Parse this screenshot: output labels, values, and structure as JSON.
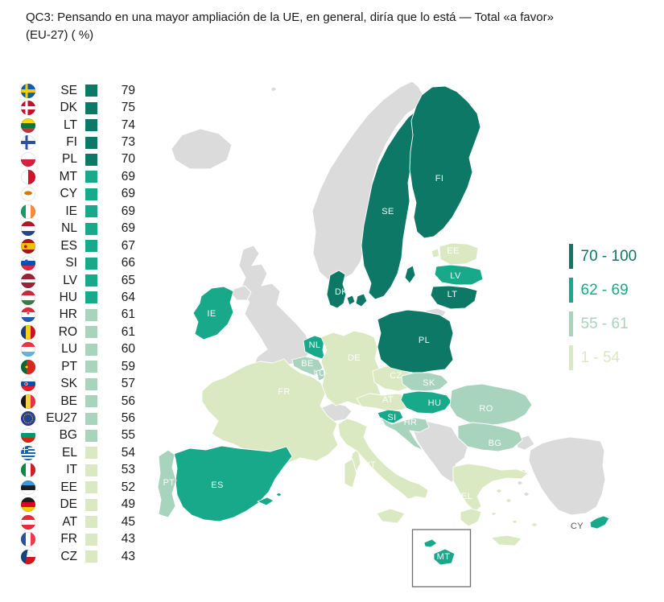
{
  "title": "QC3: Pensando en una mayor ampliación de la UE, en general, diría que lo está — Total «a favor» (EU-27) ( %)",
  "palette": {
    "band1": "#0E7866",
    "band2": "#18A88A",
    "band3": "#A8D4BE",
    "band4": "#DBE9C3",
    "non_eu_grey": "#DBDBDB",
    "sea": "#FFFFFF"
  },
  "legend": {
    "items": [
      {
        "label": "70 - 100",
        "color": "#0E7866"
      },
      {
        "label": "62 - 69",
        "color": "#18A88A"
      },
      {
        "label": "55 - 61",
        "color": "#A8D4BE"
      },
      {
        "label": "1 - 54",
        "color": "#DBE9C3"
      }
    ]
  },
  "ranking": [
    {
      "code": "SE",
      "flag": "flag-se",
      "value": 79
    },
    {
      "code": "DK",
      "flag": "flag-dk",
      "value": 75
    },
    {
      "code": "LT",
      "flag": "flag-lt",
      "value": 74
    },
    {
      "code": "FI",
      "flag": "flag-fi",
      "value": 73
    },
    {
      "code": "PL",
      "flag": "flag-pl",
      "value": 70
    },
    {
      "code": "MT",
      "flag": "flag-mt",
      "value": 69
    },
    {
      "code": "CY",
      "flag": "flag-cy",
      "value": 69
    },
    {
      "code": "IE",
      "flag": "flag-ie",
      "value": 69
    },
    {
      "code": "NL",
      "flag": "flag-nl",
      "value": 69
    },
    {
      "code": "ES",
      "flag": "flag-es",
      "value": 67
    },
    {
      "code": "SI",
      "flag": "flag-si",
      "value": 66
    },
    {
      "code": "LV",
      "flag": "flag-lv",
      "value": 65
    },
    {
      "code": "HU",
      "flag": "flag-hu",
      "value": 64
    },
    {
      "code": "HR",
      "flag": "flag-hr",
      "value": 61
    },
    {
      "code": "RO",
      "flag": "flag-ro",
      "value": 61
    },
    {
      "code": "LU",
      "flag": "flag-lu",
      "value": 60
    },
    {
      "code": "PT",
      "flag": "flag-pt",
      "value": 59
    },
    {
      "code": "SK",
      "flag": "flag-sk",
      "value": 57
    },
    {
      "code": "BE",
      "flag": "flag-be",
      "value": 56
    },
    {
      "code": "EU27",
      "flag": "flag-eu27",
      "value": 56
    },
    {
      "code": "BG",
      "flag": "flag-bg",
      "value": 55
    },
    {
      "code": "EL",
      "flag": "flag-el",
      "value": 54
    },
    {
      "code": "IT",
      "flag": "flag-it",
      "value": 53
    },
    {
      "code": "EE",
      "flag": "flag-ee",
      "value": 52
    },
    {
      "code": "DE",
      "flag": "flag-de",
      "value": 49
    },
    {
      "code": "AT",
      "flag": "flag-at",
      "value": 45
    },
    {
      "code": "FR",
      "flag": "flag-fr",
      "value": 43
    },
    {
      "code": "CZ",
      "flag": "flag-cz",
      "value": 43
    }
  ],
  "chart_data": {
    "type": "heatmap",
    "subtype": "choropleth-map-europe",
    "title": "QC3: Pensando en una mayor ampliación de la UE, en general, diría que lo está — Total «a favor» (EU-27) ( %)",
    "unit": "%",
    "categories": [
      "SE",
      "DK",
      "LT",
      "FI",
      "PL",
      "MT",
      "CY",
      "IE",
      "NL",
      "ES",
      "SI",
      "LV",
      "HU",
      "HR",
      "RO",
      "LU",
      "PT",
      "SK",
      "BE",
      "EU27",
      "BG",
      "EL",
      "IT",
      "EE",
      "DE",
      "AT",
      "FR",
      "CZ"
    ],
    "values": [
      79,
      75,
      74,
      73,
      70,
      69,
      69,
      69,
      69,
      67,
      66,
      65,
      64,
      61,
      61,
      60,
      59,
      57,
      56,
      56,
      55,
      54,
      53,
      52,
      49,
      45,
      43,
      43
    ],
    "legend_bins": [
      {
        "range": "70 - 100",
        "color": "#0E7866"
      },
      {
        "range": "62 - 69",
        "color": "#18A88A"
      },
      {
        "range": "55 - 61",
        "color": "#A8D4BE"
      },
      {
        "range": "1 - 54",
        "color": "#DBE9C3"
      }
    ],
    "legend_position": "right",
    "non_eu_countries_color_note": "non-EU countries shown grey"
  }
}
